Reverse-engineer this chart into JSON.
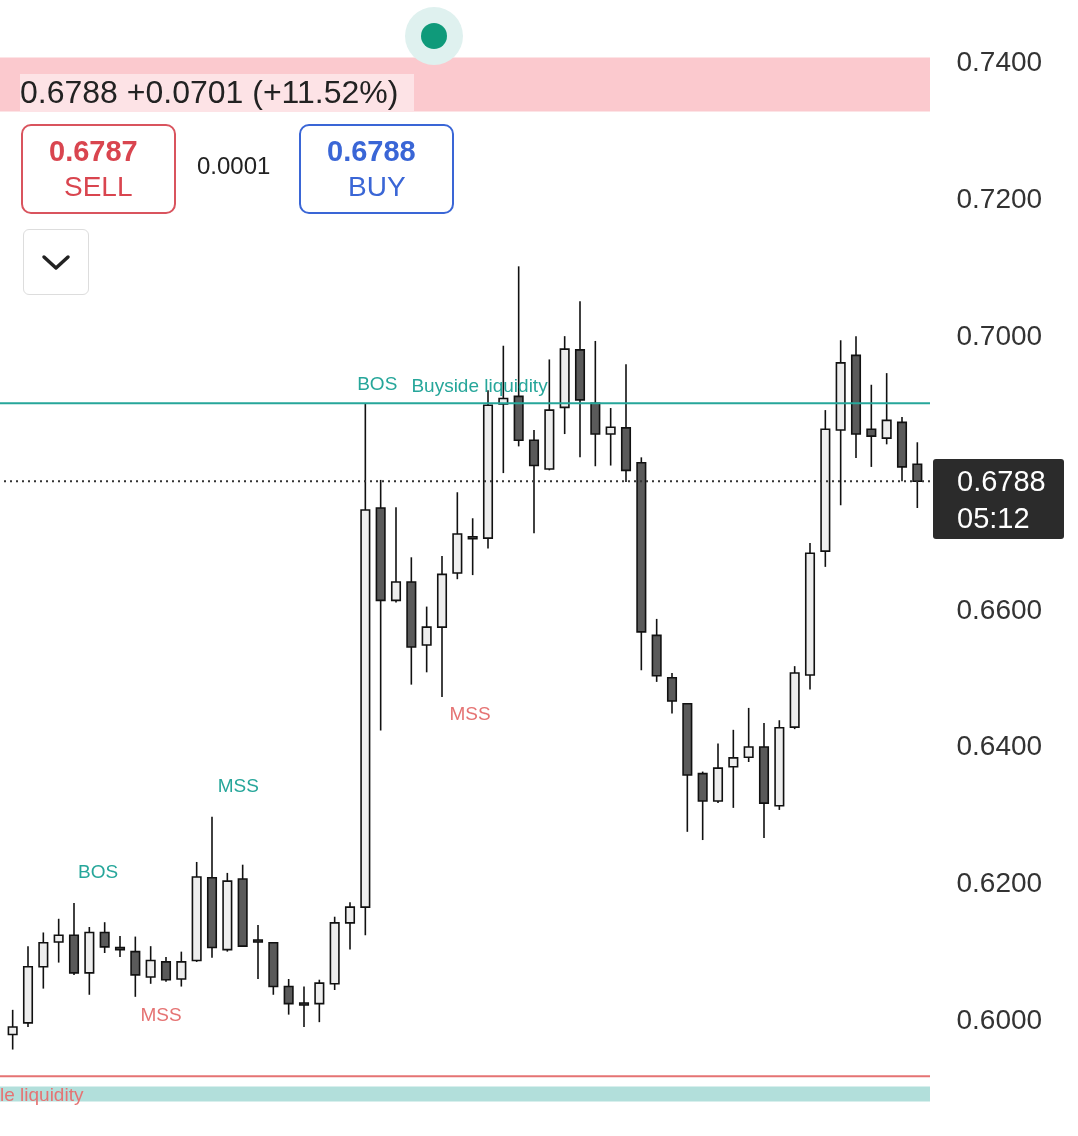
{
  "chart_data": {
    "type": "candlestick",
    "categories": [
      null,
      null,
      null,
      null,
      null,
      null,
      null,
      null,
      null,
      null,
      null,
      null,
      null,
      null,
      null,
      null,
      null,
      null,
      null,
      null,
      null,
      null,
      null,
      null,
      null,
      null,
      null,
      null,
      null,
      null,
      null,
      null,
      null,
      null,
      null,
      null,
      null,
      null,
      null,
      null,
      null,
      null,
      null,
      null,
      null,
      null,
      null,
      null,
      null,
      null,
      null,
      null,
      null,
      null,
      null,
      null,
      null,
      null,
      null,
      null
    ],
    "ohlc": [
      [
        0.598,
        0.6016,
        0.5958,
        0.5991
      ],
      [
        0.5997,
        0.6109,
        0.5991,
        0.6079
      ],
      [
        0.6079,
        0.6129,
        0.6047,
        0.6114
      ],
      [
        0.6115,
        0.6149,
        0.6085,
        0.6125
      ],
      [
        0.6125,
        0.6172,
        0.6067,
        0.607
      ],
      [
        0.607,
        0.6137,
        0.6038,
        0.6129
      ],
      [
        0.6129,
        0.6144,
        0.6099,
        0.6108
      ],
      [
        0.6107,
        0.6124,
        0.6093,
        0.6104
      ],
      [
        0.6101,
        0.6123,
        0.6035,
        0.6067
      ],
      [
        0.6064,
        0.6109,
        0.6054,
        0.6088
      ],
      [
        0.6086,
        0.6093,
        0.6057,
        0.606
      ],
      [
        0.6061,
        0.6101,
        0.605,
        0.6086
      ],
      [
        0.6088,
        0.6232,
        0.6086,
        0.621
      ],
      [
        0.6209,
        0.6298,
        0.6092,
        0.6107
      ],
      [
        0.6104,
        0.6216,
        0.6101,
        0.6204
      ],
      [
        0.6207,
        0.6228,
        0.6108,
        0.6109
      ],
      [
        0.6118,
        0.614,
        0.6061,
        0.6115
      ],
      [
        0.6114,
        0.6115,
        0.6038,
        0.605
      ],
      [
        0.605,
        0.6061,
        0.6009,
        0.6025
      ],
      [
        0.6026,
        0.605,
        0.5991,
        0.6023
      ],
      [
        0.6025,
        0.606,
        0.5998,
        0.6055
      ],
      [
        0.6054,
        0.6152,
        0.6045,
        0.6143
      ],
      [
        0.6143,
        0.6173,
        0.6104,
        0.6166
      ],
      [
        0.6166,
        0.6902,
        0.6125,
        0.6746
      ],
      [
        0.6749,
        0.679,
        0.6424,
        0.6614
      ],
      [
        0.6614,
        0.675,
        0.6611,
        0.6641
      ],
      [
        0.6641,
        0.6677,
        0.6491,
        0.6546
      ],
      [
        0.6549,
        0.6605,
        0.6509,
        0.6575
      ],
      [
        0.6575,
        0.6679,
        0.6473,
        0.6652
      ],
      [
        0.6654,
        0.6772,
        0.6645,
        0.6711
      ],
      [
        0.6707,
        0.6734,
        0.6651,
        0.6704
      ],
      [
        0.6705,
        0.6921,
        0.669,
        0.6899
      ],
      [
        0.6901,
        0.6986,
        0.68,
        0.6909
      ],
      [
        0.6912,
        0.7102,
        0.6839,
        0.6848
      ],
      [
        0.6848,
        0.6863,
        0.6712,
        0.6811
      ],
      [
        0.6806,
        0.6966,
        0.6804,
        0.6892
      ],
      [
        0.6896,
        0.7,
        0.6857,
        0.6981
      ],
      [
        0.698,
        0.7051,
        0.6823,
        0.6907
      ],
      [
        0.6902,
        0.6993,
        0.681,
        0.6857
      ],
      [
        0.6857,
        0.6895,
        0.6811,
        0.6867
      ],
      [
        0.6866,
        0.6959,
        0.6787,
        0.6804
      ],
      [
        0.6815,
        0.6823,
        0.6512,
        0.6568
      ],
      [
        0.6563,
        0.6587,
        0.6495,
        0.6504
      ],
      [
        0.6501,
        0.6508,
        0.6449,
        0.6467
      ],
      [
        0.6463,
        0.6464,
        0.6276,
        0.6359
      ],
      [
        0.6361,
        0.6364,
        0.6264,
        0.6321
      ],
      [
        0.6321,
        0.6405,
        0.6318,
        0.6369
      ],
      [
        0.6371,
        0.6425,
        0.6311,
        0.6384
      ],
      [
        0.6385,
        0.6457,
        0.6378,
        0.64
      ],
      [
        0.64,
        0.6435,
        0.6267,
        0.6318
      ],
      [
        0.6314,
        0.6439,
        0.6308,
        0.6428
      ],
      [
        0.6429,
        0.6518,
        0.6426,
        0.6508
      ],
      [
        0.6505,
        0.6698,
        0.6484,
        0.6683
      ],
      [
        0.6686,
        0.6892,
        0.6663,
        0.6864
      ],
      [
        0.6863,
        0.6994,
        0.6753,
        0.6961
      ],
      [
        0.6972,
        0.7,
        0.6822,
        0.6857
      ],
      [
        0.6864,
        0.6929,
        0.6809,
        0.6854
      ],
      [
        0.6851,
        0.6946,
        0.6842,
        0.6877
      ],
      [
        0.6874,
        0.6882,
        0.6788,
        0.6809
      ],
      [
        0.6813,
        0.6845,
        0.6749,
        0.6788
      ]
    ],
    "ylim": [
      0.5877,
      0.7491
    ],
    "yticks": [
      {
        "value": 0.6,
        "label": "0.6000"
      },
      {
        "value": 0.62,
        "label": "0.6200"
      },
      {
        "value": 0.64,
        "label": "0.6400"
      },
      {
        "value": 0.66,
        "label": "0.6600"
      },
      {
        "value": 0.7,
        "label": "0.7000"
      },
      {
        "value": 0.72,
        "label": "0.7200"
      },
      {
        "value": 0.74,
        "label": "0.7400"
      }
    ],
    "ref_lines": [
      {
        "axis": "y",
        "value": 0.6902,
        "label": "Buyside liquidity",
        "color": "#26a69a",
        "line_style": "solid"
      },
      {
        "axis": "y",
        "value": 0.5919,
        "label": "le liquidity",
        "color": "#e57373",
        "line_style": "solid"
      },
      {
        "axis": "y",
        "value": 0.6788,
        "label": "0.6788",
        "color": "#333333",
        "line_style": "dotted"
      }
    ],
    "bands": [
      {
        "axis": "y",
        "from": 0.7328,
        "to": 0.7407,
        "color": "#fbc9ce"
      },
      {
        "axis": "y",
        "from": 0.5882,
        "to": 0.5904,
        "color": "#b2dfdb"
      }
    ],
    "annotations": [
      "0.6788  +0.0701 (+11.52%)",
      "0.6787",
      "SELL",
      "0.0001",
      "0.6788",
      "BUY",
      "05:12",
      "BOS",
      "MSS",
      "MSS",
      "BOS",
      "MSS"
    ]
  }
}
